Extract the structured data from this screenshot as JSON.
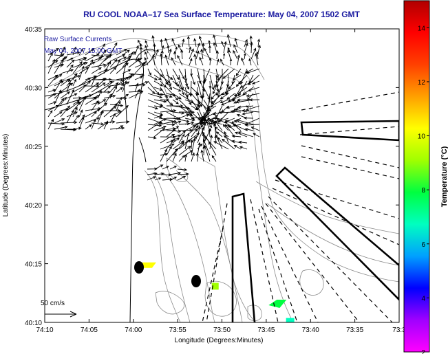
{
  "chart_data": {
    "type": "map",
    "title": "RU COOL  NOAA–17  Sea Surface Temperature:  May 04, 2007 1502 GMT",
    "xlabel": "Longitude (Degrees:Minutes)",
    "ylabel": "Latitude (Degrees:Minutes)",
    "x_ticks": [
      "74:10",
      "74:05",
      "74:00",
      "73:55",
      "73:50",
      "73:45",
      "73:40",
      "73:35",
      "73:3"
    ],
    "y_ticks": [
      "40:10",
      "40:15",
      "40:20",
      "40:25",
      "40:30",
      "40:35"
    ],
    "xlim": [
      -74.1667,
      -73.5
    ],
    "ylim": [
      40.1667,
      40.5833
    ],
    "legend_lines": [
      "Raw Surface Currents",
      "May 04, 2007 15:00 GMT"
    ],
    "vector_scale_label": "50 cm/s",
    "colorbar": {
      "label": "Temperature (°C)",
      "ticks": [
        "2",
        "4",
        "6",
        "8",
        "10",
        "12",
        "14"
      ],
      "range": [
        2,
        15
      ],
      "colors": [
        "#ff00ff",
        "#a000ff",
        "#0000ff",
        "#00a0ff",
        "#00ffc0",
        "#00ff40",
        "#a0ff00",
        "#ffff00",
        "#ffa000",
        "#ff4000",
        "#ff0000",
        "#b00000"
      ]
    },
    "sst_patches": [
      {
        "lon": -73.97,
        "lat": 40.247,
        "temp": 10.2
      },
      {
        "lon": -73.846,
        "lat": 40.218,
        "temp": 8.6
      },
      {
        "lon": -73.73,
        "lat": 40.193,
        "temp": 7.5
      },
      {
        "lon": -73.705,
        "lat": 40.17,
        "temp": 6.5
      }
    ]
  },
  "colors": {
    "title": "#1a1aa0",
    "coast": "#000000",
    "depth_contours": "#888888",
    "vectors": "#000000"
  }
}
